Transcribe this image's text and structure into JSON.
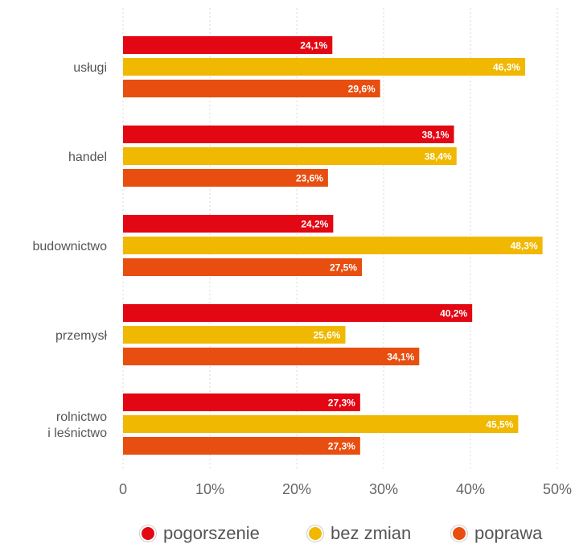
{
  "chart_data": {
    "type": "bar",
    "orientation": "horizontal",
    "categories": [
      "usługi",
      "handel",
      "budownictwo",
      "przemysł",
      "rolnictwo\ni leśnictwo"
    ],
    "series": [
      {
        "name": "pogorszenie",
        "color": "#e30613",
        "values": [
          24.1,
          38.1,
          24.2,
          40.2,
          27.3
        ],
        "labels": [
          "24,1%",
          "38,1%",
          "24,2%",
          "40,2%",
          "27,3%"
        ]
      },
      {
        "name": "bez zmian",
        "color": "#f0b800",
        "values": [
          46.3,
          38.4,
          48.3,
          25.6,
          45.5
        ],
        "labels": [
          "46,3%",
          "38,4%",
          "48,3%",
          "25,6%",
          "45,5%"
        ]
      },
      {
        "name": "poprawa",
        "color": "#e84e10",
        "values": [
          29.6,
          23.6,
          27.5,
          34.1,
          27.3
        ],
        "labels": [
          "29,6%",
          "23,6%",
          "27,5%",
          "34,1%",
          "27,3%"
        ]
      }
    ],
    "xlim": [
      0,
      50
    ],
    "xticks": [
      0,
      10,
      20,
      30,
      40,
      50
    ],
    "xtick_labels": [
      "0",
      "10%",
      "20%",
      "30%",
      "40%",
      "50%"
    ],
    "grid": "vertical dotted",
    "legend_position": "bottom"
  },
  "legend": {
    "items": [
      {
        "label": "pogorszenie",
        "color": "#e30613"
      },
      {
        "label": "bez zmian",
        "color": "#f0b800"
      },
      {
        "label": "poprawa",
        "color": "#e84e10"
      }
    ]
  }
}
